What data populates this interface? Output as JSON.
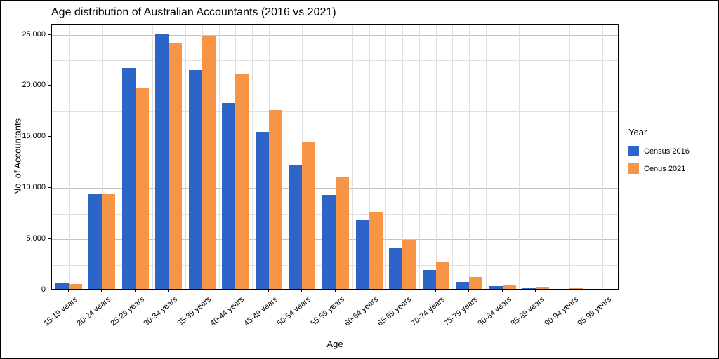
{
  "chart_data": {
    "type": "bar",
    "title": "Age distribution of Australian Accountants (2016 vs 2021)",
    "xlabel": "Age",
    "ylabel": "No. of Accountants",
    "legend_title": "Year",
    "legend_position": "right",
    "grid": true,
    "categories": [
      "15-19 years",
      "20-24 years",
      "25-29 years",
      "30-34 years",
      "35-39 years",
      "40-44 years",
      "45-49 years",
      "50-54 years",
      "55-59 years",
      "60-64 years",
      "65-69 years",
      "70-74 years",
      "75-79 years",
      "80-84 years",
      "85-89 years",
      "90-94 years",
      "95-99 years"
    ],
    "series": [
      {
        "name": "Census 2016",
        "color": "#2d64c8",
        "values": [
          600,
          9300,
          21600,
          25000,
          21400,
          18200,
          15400,
          12100,
          9200,
          6700,
          4000,
          1850,
          700,
          250,
          100,
          30,
          10
        ]
      },
      {
        "name": "Cenus 2021",
        "color": "#f79445",
        "values": [
          500,
          9300,
          19600,
          24000,
          24700,
          21000,
          17500,
          14400,
          11000,
          7500,
          4800,
          2700,
          1200,
          400,
          150,
          40,
          10
        ]
      }
    ],
    "ylim": [
      0,
      26000
    ],
    "yticks": [
      0,
      5000,
      10000,
      15000,
      20000,
      25000
    ],
    "yticks_minor": [
      2500,
      7500,
      12500,
      17500,
      22500
    ]
  }
}
